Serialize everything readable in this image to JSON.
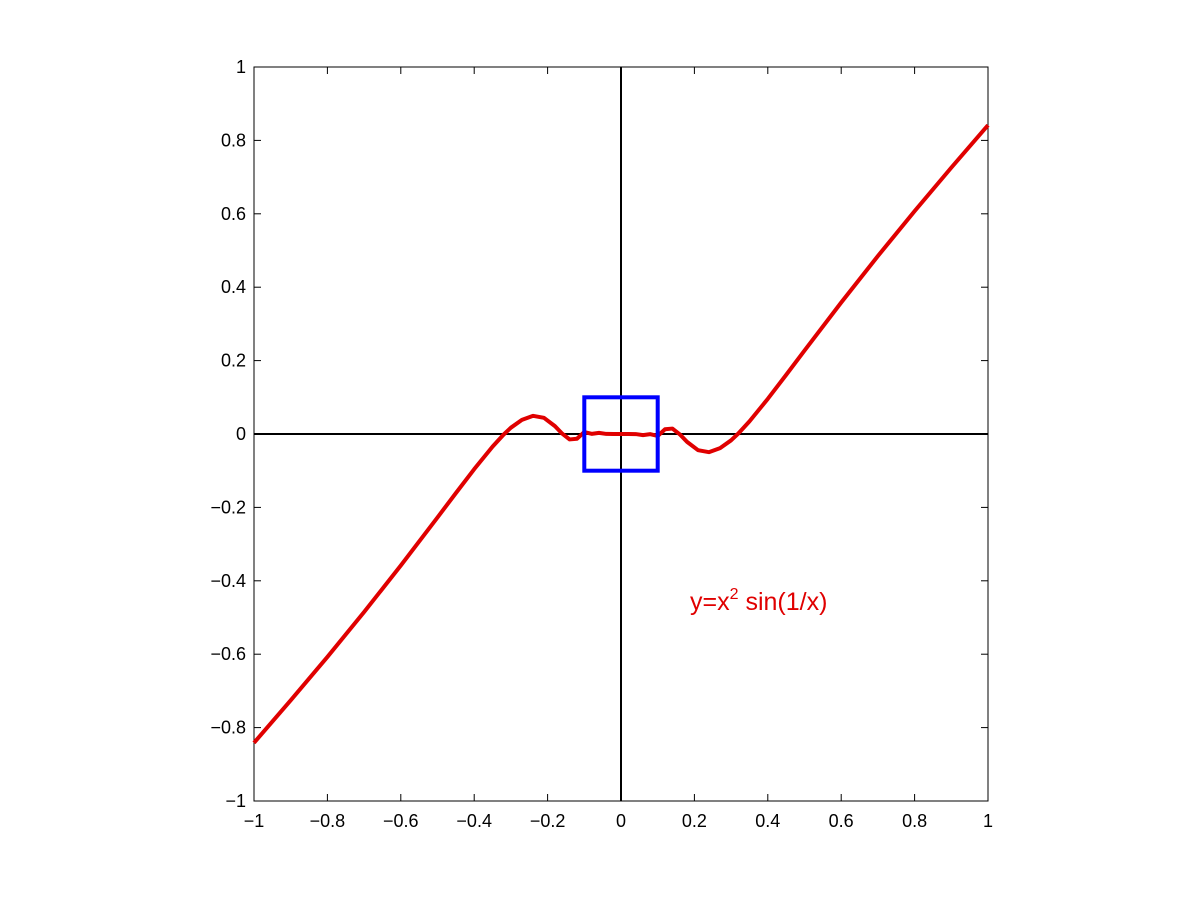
{
  "chart_data": {
    "type": "line",
    "x": [
      -1,
      -0.9,
      -0.8,
      -0.7,
      -0.6,
      -0.5,
      -0.45,
      -0.4,
      -0.35,
      -0.32,
      -0.3,
      -0.27,
      -0.24,
      -0.21,
      -0.18,
      -0.16,
      -0.14,
      -0.12,
      -0.1,
      -0.08,
      -0.06,
      -0.04,
      -0.02,
      0,
      0.02,
      0.04,
      0.06,
      0.08,
      0.1,
      0.12,
      0.14,
      0.16,
      0.18,
      0.21,
      0.24,
      0.27,
      0.3,
      0.32,
      0.35,
      0.4,
      0.45,
      0.5,
      0.6,
      0.7,
      0.8,
      0.9,
      1
    ],
    "values": [
      -0.8415,
      -0.7258,
      -0.6074,
      -0.485,
      -0.3583,
      -0.2273,
      -0.1611,
      -0.0958,
      -0.0344,
      -0.0017,
      0.0172,
      0.0385,
      0.0495,
      0.0441,
      0.0215,
      0.0008,
      -0.0148,
      -0.0129,
      0.0054,
      0.0004,
      0.003,
      0.0002,
      0.0001,
      0,
      -0.0001,
      -0.0002,
      -0.003,
      -0.0004,
      -0.0054,
      0.0129,
      0.0148,
      -0.0008,
      -0.0215,
      -0.0441,
      -0.0495,
      -0.0385,
      -0.0172,
      0.0017,
      0.0344,
      0.0958,
      0.1611,
      0.2273,
      0.3583,
      0.485,
      0.6074,
      0.7258,
      0.8415
    ],
    "color": "#e00000",
    "xlim": [
      -1,
      1
    ],
    "ylim": [
      -1,
      1
    ],
    "xticks": [
      {
        "value": -1,
        "label": "−1"
      },
      {
        "value": -0.8,
        "label": "−0.8"
      },
      {
        "value": -0.6,
        "label": "−0.6"
      },
      {
        "value": -0.4,
        "label": "−0.4"
      },
      {
        "value": -0.2,
        "label": "−0.2"
      },
      0,
      0.2,
      0.4,
      0.6,
      0.8,
      1
    ],
    "yticks": [
      {
        "value": -1,
        "label": "−1"
      },
      {
        "value": -0.8,
        "label": "−0.8"
      },
      {
        "value": -0.6,
        "label": "−0.6"
      },
      {
        "value": -0.4,
        "label": "−0.4"
      },
      {
        "value": -0.2,
        "label": "−0.2"
      },
      0,
      0.2,
      0.4,
      0.6,
      0.8,
      1
    ],
    "zero_lines": true,
    "box": {
      "x": [
        -0.1,
        0.1
      ],
      "y": [
        -0.1,
        0.1
      ],
      "color": "#0000ff"
    },
    "annotation": {
      "base": "y=x",
      "superscript": "2",
      "rest": " sin(1/x)",
      "color": "#e00000"
    }
  }
}
